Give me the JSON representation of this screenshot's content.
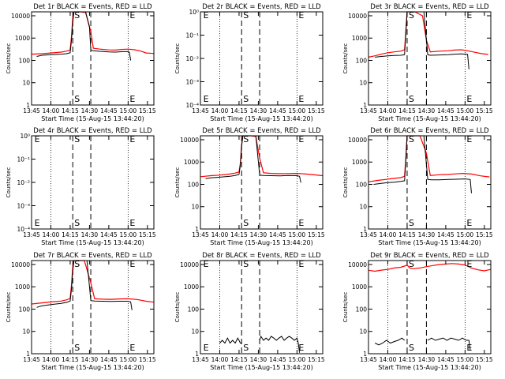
{
  "figure": {
    "x_tick_labels": [
      "13:45",
      "14:00",
      "14:15",
      "14:30",
      "14:45",
      "15:00",
      "15:15"
    ],
    "x_axis_title": "Start Time (15-Aug-15 13:44:20)",
    "y_axis_title": "Counts/sec",
    "marker_start": "S",
    "marker_end": "E",
    "colors": {
      "events": "#000000",
      "lld": "#ff0000",
      "axes": "#000000",
      "background": "#ffffff"
    }
  },
  "chart_data": [
    {
      "type": "line",
      "title": "Det 1r BLACK = Events, RED = LLD",
      "log_y": true,
      "ylim": [
        1,
        15000
      ],
      "xlim": [
        "13:45",
        "15:20"
      ],
      "y_tick_labels": [
        "1",
        "10",
        "100",
        "1000",
        "10000"
      ],
      "y_tick_values": [
        1,
        10,
        100,
        1000,
        10000
      ],
      "markers": [
        {
          "text": "S",
          "x": "14:17"
        },
        {
          "text": "E",
          "x": "15:00"
        }
      ],
      "dashed_x": [
        "14:17",
        "14:31"
      ],
      "series": [
        {
          "color": "lld",
          "x": [
            "13:45",
            "13:53",
            "14:00",
            "14:08",
            "14:12",
            "14:15",
            "14:16",
            "14:17",
            "14:18",
            "14:19",
            "14:20",
            "14:23",
            "14:27",
            "14:31",
            "14:33",
            "14:38",
            "14:45",
            "14:50",
            "14:55",
            "15:00",
            "15:05",
            "15:10",
            "15:14",
            "15:20"
          ],
          "y": [
            190,
            200,
            215,
            235,
            260,
            290,
            1200,
            8000,
            15000,
            15000,
            15000,
            15000,
            14000,
            2000,
            350,
            320,
            295,
            290,
            310,
            320,
            300,
            260,
            215,
            205
          ]
        },
        {
          "color": "events",
          "x": [
            "13:49",
            "13:53",
            "14:00",
            "14:08",
            "14:12",
            "14:15",
            "14:16",
            "14:17",
            "14:18",
            "14:27",
            "14:30",
            "14:31",
            "14:33",
            "14:38",
            "14:45",
            "14:50",
            "14:55",
            "15:00",
            "15:01",
            "15:02"
          ],
          "y": [
            150,
            170,
            180,
            190,
            200,
            220,
            800,
            5000,
            15000,
            15000,
            3000,
            290,
            270,
            255,
            240,
            235,
            245,
            250,
            230,
            100
          ]
        }
      ]
    },
    {
      "type": "line",
      "title": "Det 2r BLACK = Events, RED = LLD",
      "log_y": true,
      "ylim": [
        0.0001,
        1
      ],
      "xlim": [
        "13:45",
        "15:20"
      ],
      "y_tick_labels": [
        "10⁰",
        "10⁻¹",
        "10⁻²",
        "10⁻³",
        "10⁻⁴"
      ],
      "y_tick_values": [
        1,
        0.1,
        0.01,
        0.001,
        0.0001
      ],
      "markers": [
        {
          "text": "E",
          "x": "13:46"
        },
        {
          "text": "S",
          "x": "14:17"
        },
        {
          "text": "E",
          "x": "15:00"
        }
      ],
      "dashed_x": [
        "14:17",
        "14:31"
      ],
      "series": []
    },
    {
      "type": "line",
      "title": "Det 3r BLACK = Events, RED = LLD",
      "log_y": true,
      "ylim": [
        1,
        15000
      ],
      "xlim": [
        "13:45",
        "15:20"
      ],
      "y_tick_labels": [
        "1",
        "10",
        "100",
        "1000",
        "10000"
      ],
      "y_tick_values": [
        1,
        10,
        100,
        1000,
        10000
      ],
      "markers": [
        {
          "text": "S",
          "x": "14:15"
        },
        {
          "text": "E",
          "x": "15:00"
        }
      ],
      "dashed_x": [
        "14:15",
        "14:30"
      ],
      "series": [
        {
          "color": "lld",
          "x": [
            "13:45",
            "13:50",
            "13:55",
            "14:00",
            "14:05",
            "14:10",
            "14:13",
            "14:14",
            "14:15",
            "14:16",
            "14:18",
            "14:21",
            "14:27",
            "14:30",
            "14:33",
            "14:40",
            "14:47",
            "14:52",
            "14:57",
            "15:02",
            "15:08",
            "15:13",
            "15:18"
          ],
          "y": [
            140,
            160,
            190,
            220,
            240,
            260,
            300,
            2000,
            15000,
            15000,
            15000,
            15000,
            10000,
            800,
            240,
            260,
            270,
            290,
            300,
            270,
            230,
            200,
            185
          ]
        },
        {
          "color": "events",
          "x": [
            "13:50",
            "13:55",
            "14:00",
            "14:05",
            "14:10",
            "14:13",
            "14:14",
            "14:15",
            "14:16",
            "14:28",
            "14:31",
            "14:33",
            "14:40",
            "14:47",
            "14:52",
            "14:57",
            "15:02",
            "15:03"
          ],
          "y": [
            140,
            150,
            160,
            165,
            170,
            180,
            1500,
            15000,
            15000,
            15000,
            180,
            170,
            175,
            180,
            190,
            195,
            185,
            40
          ]
        }
      ]
    },
    {
      "type": "line",
      "title": "Det 4r BLACK = Events, RED = LLD",
      "log_y": true,
      "ylim": [
        0.0001,
        1
      ],
      "xlim": [
        "13:45",
        "15:20"
      ],
      "y_tick_labels": [
        "10⁰",
        "10⁻¹",
        "10⁻²",
        "10⁻³",
        "10⁻⁴"
      ],
      "y_tick_values": [
        1,
        0.1,
        0.01,
        0.001,
        0.0001
      ],
      "markers": [
        {
          "text": "E",
          "x": "13:46"
        },
        {
          "text": "S",
          "x": "14:17"
        },
        {
          "text": "E",
          "x": "15:00"
        }
      ],
      "dashed_x": [
        "14:17",
        "14:31"
      ],
      "series": []
    },
    {
      "type": "line",
      "title": "Det 5r BLACK = Events, RED = LLD",
      "log_y": true,
      "ylim": [
        1,
        15000
      ],
      "xlim": [
        "13:45",
        "15:20"
      ],
      "y_tick_labels": [
        "1",
        "10",
        "100",
        "1000",
        "10000"
      ],
      "y_tick_values": [
        1,
        10,
        100,
        1000,
        10000
      ],
      "markers": [
        {
          "text": "S",
          "x": "14:17"
        },
        {
          "text": "E",
          "x": "15:00"
        }
      ],
      "dashed_x": [
        "14:17",
        "14:31"
      ],
      "series": [
        {
          "color": "lld",
          "x": [
            "13:45",
            "13:53",
            "14:00",
            "14:08",
            "14:12",
            "14:15",
            "14:16",
            "14:17",
            "14:18",
            "14:20",
            "14:24",
            "14:28",
            "14:31",
            "14:34",
            "14:40",
            "14:47",
            "14:53",
            "15:00",
            "15:07",
            "15:14",
            "15:20"
          ],
          "y": [
            220,
            245,
            260,
            290,
            320,
            360,
            900,
            6000,
            15000,
            15000,
            15000,
            14000,
            1500,
            330,
            310,
            300,
            305,
            310,
            290,
            265,
            245
          ]
        },
        {
          "color": "events",
          "x": [
            "13:49",
            "13:53",
            "14:00",
            "14:08",
            "14:12",
            "14:15",
            "14:16",
            "14:17",
            "14:18",
            "14:28",
            "14:31",
            "14:34",
            "14:40",
            "14:47",
            "14:53",
            "15:00",
            "15:02",
            "15:03"
          ],
          "y": [
            180,
            195,
            210,
            230,
            250,
            280,
            700,
            5000,
            15000,
            15000,
            260,
            250,
            245,
            240,
            250,
            245,
            230,
            120
          ]
        }
      ]
    },
    {
      "type": "line",
      "title": "Det 6r BLACK = Events, RED = LLD",
      "log_y": true,
      "ylim": [
        1,
        15000
      ],
      "xlim": [
        "13:45",
        "15:20"
      ],
      "y_tick_labels": [
        "1",
        "10",
        "100",
        "1000",
        "10000"
      ],
      "y_tick_values": [
        1,
        10,
        100,
        1000,
        10000
      ],
      "markers": [
        {
          "text": "S",
          "x": "14:15"
        },
        {
          "text": "E",
          "x": "15:00"
        }
      ],
      "dashed_x": [
        "14:15",
        "14:30"
      ],
      "series": [
        {
          "color": "lld",
          "x": [
            "13:45",
            "13:52",
            "13:58",
            "14:05",
            "14:10",
            "14:13",
            "14:14",
            "14:15",
            "14:16",
            "14:20",
            "14:25",
            "14:30",
            "14:33",
            "14:40",
            "14:47",
            "14:53",
            "14:58",
            "15:05",
            "15:12",
            "15:19"
          ],
          "y": [
            130,
            150,
            165,
            185,
            200,
            230,
            1500,
            15000,
            15000,
            15000,
            15000,
            2500,
            250,
            270,
            280,
            295,
            310,
            290,
            240,
            215
          ]
        },
        {
          "color": "events",
          "x": [
            "13:49",
            "13:55",
            "14:00",
            "14:05",
            "14:10",
            "14:13",
            "14:14",
            "14:15",
            "14:16",
            "14:28",
            "14:31",
            "14:34",
            "14:40",
            "14:47",
            "14:53",
            "15:00",
            "15:04",
            "15:05"
          ],
          "y": [
            100,
            110,
            120,
            125,
            135,
            145,
            1200,
            15000,
            15000,
            15000,
            165,
            160,
            160,
            165,
            170,
            175,
            165,
            40
          ]
        }
      ]
    },
    {
      "type": "line",
      "title": "Det 7r BLACK = Events, RED = LLD",
      "log_y": true,
      "ylim": [
        1,
        15000
      ],
      "xlim": [
        "13:45",
        "15:20"
      ],
      "y_tick_labels": [
        "1",
        "10",
        "100",
        "1000",
        "10000"
      ],
      "y_tick_values": [
        1,
        10,
        100,
        1000,
        10000
      ],
      "markers": [
        {
          "text": "S",
          "x": "14:17"
        },
        {
          "text": "E",
          "x": "15:00"
        }
      ],
      "dashed_x": [
        "14:17",
        "14:31"
      ],
      "series": [
        {
          "color": "lld",
          "x": [
            "13:45",
            "13:53",
            "14:00",
            "14:08",
            "14:12",
            "14:15",
            "14:16",
            "14:17",
            "14:18",
            "14:21",
            "14:26",
            "14:31",
            "14:34",
            "14:40",
            "14:47",
            "14:53",
            "15:00",
            "15:07",
            "15:14",
            "15:20"
          ],
          "y": [
            170,
            190,
            210,
            230,
            260,
            300,
            1200,
            8000,
            15000,
            15000,
            15000,
            1500,
            290,
            280,
            275,
            285,
            290,
            270,
            225,
            205
          ]
        },
        {
          "color": "events",
          "x": [
            "13:49",
            "13:53",
            "14:00",
            "14:08",
            "14:12",
            "14:15",
            "14:16",
            "14:17",
            "14:18",
            "14:28",
            "14:31",
            "14:34",
            "14:40",
            "14:47",
            "14:53",
            "15:00",
            "15:02",
            "15:03"
          ],
          "y": [
            120,
            140,
            160,
            180,
            200,
            230,
            800,
            5000,
            15000,
            15000,
            240,
            230,
            225,
            220,
            225,
            225,
            210,
            90
          ]
        }
      ]
    },
    {
      "type": "line",
      "title": "Det 8r BLACK = Events, RED = LLD",
      "log_y": true,
      "ylim": [
        1,
        15000
      ],
      "xlim": [
        "13:45",
        "15:20"
      ],
      "y_tick_labels": [
        "1",
        "10",
        "100",
        "1000",
        "10000"
      ],
      "y_tick_values": [
        1,
        10,
        100,
        1000,
        10000
      ],
      "markers": [
        {
          "text": "E",
          "x": "13:46"
        },
        {
          "text": "S",
          "x": "14:17"
        },
        {
          "text": "E",
          "x": "15:00"
        }
      ],
      "dashed_x": [
        "14:17",
        "14:31"
      ],
      "series": [
        {
          "color": "events",
          "x": [
            "14:00",
            "14:02",
            "14:04",
            "14:06",
            "14:08",
            "14:10",
            "14:12",
            "14:14",
            "14:15",
            "14:16",
            "14:17",
            "14:18",
            "14:31",
            "14:32",
            "14:34",
            "14:36",
            "14:38",
            "14:40",
            "14:42",
            "14:44",
            "14:46",
            "14:48",
            "14:50",
            "14:52",
            "14:54",
            "14:56",
            "14:58",
            "15:00",
            "15:01",
            "15:02"
          ],
          "y": [
            3,
            4,
            3,
            5,
            3,
            4,
            3,
            5,
            4,
            3,
            3,
            null,
            4,
            6,
            4,
            5,
            4,
            6,
            5,
            4,
            5,
            6,
            4,
            5,
            6,
            5,
            4,
            5,
            3,
            1.1
          ]
        }
      ]
    },
    {
      "type": "line",
      "title": "Det 9r BLACK = Events, RED = LLD",
      "log_y": true,
      "ylim": [
        1,
        15000
      ],
      "xlim": [
        "13:45",
        "15:20"
      ],
      "y_tick_labels": [
        "1",
        "10",
        "100",
        "1000",
        "10000"
      ],
      "y_tick_values": [
        1,
        10,
        100,
        1000,
        10000
      ],
      "markers": [
        {
          "text": "S",
          "x": "14:15"
        },
        {
          "text": "E",
          "x": "15:00"
        }
      ],
      "dashed_x": [
        "14:15",
        "14:30"
      ],
      "series": [
        {
          "color": "lld",
          "x": [
            "13:45",
            "13:50",
            "13:55",
            "14:00",
            "14:05",
            "14:10",
            "14:13",
            "14:14",
            "14:15",
            "14:17",
            "14:20",
            "14:25",
            "14:30",
            "14:35",
            "14:40",
            "14:45",
            "14:50",
            "14:55",
            "15:00",
            "15:05",
            "15:10",
            "15:15",
            "15:20"
          ],
          "y": [
            5500,
            5000,
            5600,
            6000,
            7000,
            7500,
            8500,
            9000,
            9500,
            7000,
            6500,
            7000,
            8000,
            9000,
            10000,
            10500,
            11000,
            10500,
            9500,
            7000,
            5800,
            5200,
            6000
          ]
        },
        {
          "color": "events",
          "x": [
            "13:50",
            "13:53",
            "13:56",
            "13:59",
            "14:02",
            "14:05",
            "14:08",
            "14:11",
            "14:13",
            "14:14",
            "14:31",
            "14:34",
            "14:37",
            "14:40",
            "14:43",
            "14:46",
            "14:49",
            "14:52",
            "14:55",
            "14:58",
            "15:01",
            "15:03",
            "15:04"
          ],
          "y": [
            3,
            2.5,
            3,
            4,
            3,
            3.5,
            4,
            5,
            4,
            null,
            4,
            5,
            4,
            4.5,
            5,
            4,
            5,
            4.5,
            4,
            5,
            4,
            4,
            1.5
          ]
        }
      ]
    }
  ]
}
